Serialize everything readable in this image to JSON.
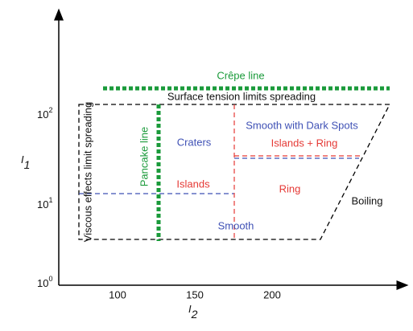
{
  "axes": {
    "y_label": {
      "symbol": "I",
      "subscript": "1"
    },
    "x_label": {
      "symbol": "I",
      "subscript": "2"
    },
    "x_ticks": [
      "100",
      "150",
      "200"
    ],
    "y_ticks": [
      {
        "base": "10",
        "exponent": "0"
      },
      {
        "base": "10",
        "exponent": "1"
      },
      {
        "base": "10",
        "exponent": "2"
      }
    ]
  },
  "lines": {
    "crepe": "Crêpe line",
    "pancake": "Pancake line",
    "surface_tension": "Surface tension limits spreading",
    "viscous": "Viscous effects limit spreading"
  },
  "regions": {
    "craters": "Craters",
    "smooth_dark_spots": "Smooth with Dark Spots",
    "islands_ring": "Islands + Ring",
    "islands": "Islands",
    "ring": "Ring",
    "boiling": "Boiling",
    "smooth": "Smooth"
  }
}
